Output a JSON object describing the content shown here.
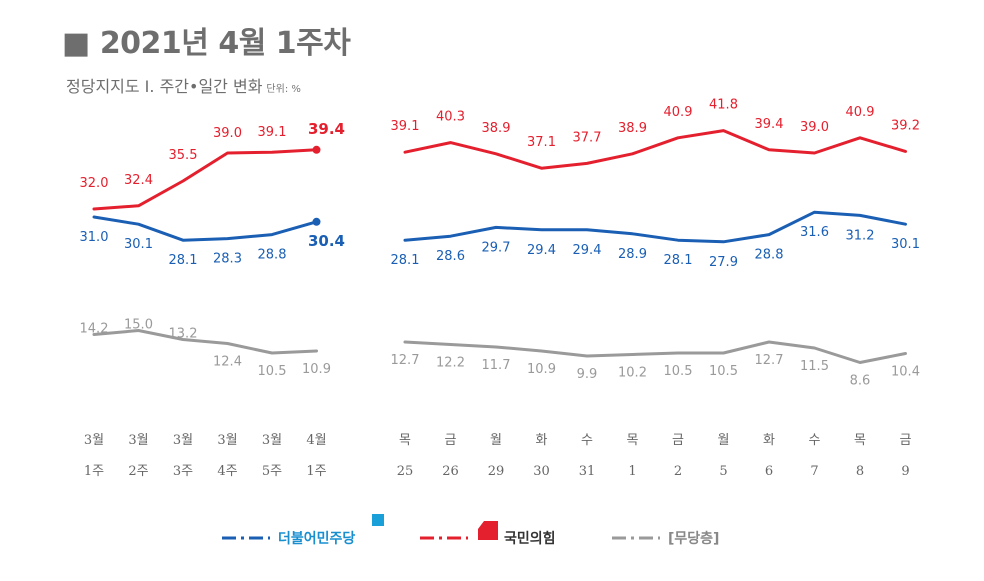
{
  "chart_data": {
    "type": "line",
    "title": "2021년 4월 1주차",
    "subtitle": "정당지지도 Ⅰ. 주간•일간 변화",
    "unit": "단위: %",
    "panels": [
      {
        "name": "weekly",
        "x_top": [
          "3월",
          "3월",
          "3월",
          "3월",
          "3월",
          "4월"
        ],
        "x_bottom": [
          "1주",
          "2주",
          "3주",
          "4주",
          "5주",
          "1주"
        ],
        "series": [
          {
            "name": "국민의힘",
            "values": [
              32.0,
              32.4,
              35.5,
              39.0,
              39.1,
              39.4
            ],
            "labels": [
              "32.0",
              "32.4",
              "35.5",
              "39.0",
              "39.1",
              "39.4"
            ]
          },
          {
            "name": "더불어민주당",
            "values": [
              31.0,
              30.1,
              28.1,
              28.3,
              28.8,
              30.4
            ],
            "labels": [
              "31.0",
              "30.1",
              "28.1",
              "28.3",
              "28.8",
              "30.4"
            ]
          },
          {
            "name": "무당층",
            "values": [
              14.2,
              15.0,
              13.2,
              12.4,
              10.5,
              10.9
            ],
            "labels": [
              "14.2",
              "15.0",
              "13.2",
              "12.4",
              "10.5",
              "10.9"
            ]
          }
        ]
      },
      {
        "name": "daily",
        "x_top": [
          "목",
          "금",
          "월",
          "화",
          "수",
          "목",
          "금",
          "월",
          "화",
          "수",
          "목",
          "금"
        ],
        "x_bottom": [
          "25",
          "26",
          "29",
          "30",
          "31",
          "1",
          "2",
          "5",
          "6",
          "7",
          "8",
          "9"
        ],
        "series": [
          {
            "name": "국민의힘",
            "values": [
              39.1,
              40.3,
              38.9,
              37.1,
              37.7,
              38.9,
              40.9,
              41.8,
              39.4,
              39.0,
              40.9,
              39.2
            ],
            "labels": [
              "39.1",
              "40.3",
              "38.9",
              "37.1",
              "37.7",
              "38.9",
              "40.9",
              "41.8",
              "39.4",
              "39.0",
              "40.9",
              "39.2"
            ]
          },
          {
            "name": "더불어민주당",
            "values": [
              28.1,
              28.6,
              29.7,
              29.4,
              29.4,
              28.9,
              28.1,
              27.9,
              28.8,
              31.6,
              31.2,
              30.1
            ],
            "labels": [
              "28.1",
              "28.6",
              "29.7",
              "29.4",
              "29.4",
              "28.9",
              "28.1",
              "27.9",
              "28.8",
              "31.6",
              "31.2",
              "30.1"
            ]
          },
          {
            "name": "무당층",
            "values": [
              12.7,
              12.2,
              11.7,
              10.9,
              9.9,
              10.2,
              10.5,
              10.5,
              12.7,
              11.5,
              8.6,
              10.4
            ],
            "labels": [
              "12.7",
              "12.2",
              "11.7",
              "10.9",
              "9.9",
              "10.2",
              "10.5",
              "10.5",
              "12.7",
              "11.5",
              "8.6",
              "10.4"
            ]
          }
        ]
      }
    ],
    "legend": [
      "더불어민주당",
      "국민의힘",
      "[무당층]"
    ],
    "colors": {
      "국민의힘": "#e4202e",
      "더불어민주당": "#1a5fb4",
      "무당층": "#9a9a9a"
    }
  }
}
